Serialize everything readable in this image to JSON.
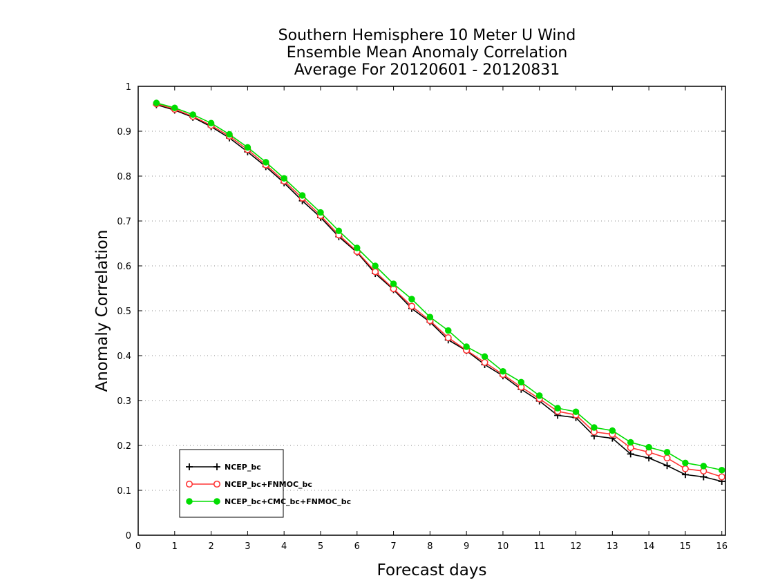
{
  "chart_data": {
    "type": "line",
    "title": [
      "Southern Hemisphere 10 Meter U Wind",
      "Ensemble Mean Anomaly Correlation",
      "Average For 20120601 - 20120831"
    ],
    "xlabel": "Forecast days",
    "ylabel": "Anomaly Correlation",
    "xlim": [
      0,
      16.1
    ],
    "ylim": [
      0,
      1
    ],
    "xticks": [
      0,
      1,
      2,
      3,
      4,
      5,
      6,
      7,
      8,
      9,
      10,
      11,
      12,
      13,
      14,
      15,
      16
    ],
    "yticks": [
      0,
      0.1,
      0.2,
      0.3,
      0.4,
      0.5,
      0.6,
      0.7,
      0.8,
      0.9,
      1
    ],
    "grid": "horizontal dotted",
    "legend_position": "bottom-left",
    "x": [
      0.5,
      1,
      1.5,
      2,
      2.5,
      3,
      3.5,
      4,
      4.5,
      5,
      5.5,
      6,
      6.5,
      7,
      7.5,
      8,
      8.5,
      9,
      9.5,
      10,
      10.5,
      11,
      11.5,
      12,
      12.5,
      13,
      13.5,
      14,
      14.5,
      15,
      15.5,
      16
    ],
    "series": [
      {
        "name": "NCEP_bc",
        "color": "#000000",
        "marker": "plus",
        "values": [
          0.959,
          0.947,
          0.931,
          0.91,
          0.885,
          0.854,
          0.821,
          0.785,
          0.745,
          0.708,
          0.665,
          0.63,
          0.583,
          0.547,
          0.505,
          0.475,
          0.435,
          0.411,
          0.38,
          0.355,
          0.325,
          0.299,
          0.267,
          0.262,
          0.221,
          0.216,
          0.181,
          0.172,
          0.155,
          0.135,
          0.13,
          0.12
        ]
      },
      {
        "name": "NCEP_bc+FNMOC_bc",
        "color": "#ff3333",
        "marker": "open-circle",
        "values": [
          0.961,
          0.949,
          0.933,
          0.913,
          0.889,
          0.859,
          0.825,
          0.789,
          0.751,
          0.712,
          0.669,
          0.632,
          0.587,
          0.549,
          0.51,
          0.478,
          0.44,
          0.412,
          0.385,
          0.358,
          0.33,
          0.304,
          0.276,
          0.268,
          0.23,
          0.225,
          0.195,
          0.185,
          0.172,
          0.148,
          0.143,
          0.13
        ]
      },
      {
        "name": "NCEP_bc+CMC_bc+FNMOC_bc",
        "color": "#00dd00",
        "marker": "filled-circle",
        "values": [
          0.963,
          0.952,
          0.937,
          0.918,
          0.893,
          0.864,
          0.831,
          0.795,
          0.757,
          0.719,
          0.678,
          0.64,
          0.6,
          0.56,
          0.526,
          0.486,
          0.456,
          0.42,
          0.398,
          0.365,
          0.341,
          0.311,
          0.283,
          0.275,
          0.24,
          0.233,
          0.207,
          0.196,
          0.185,
          0.161,
          0.154,
          0.145
        ]
      }
    ]
  }
}
